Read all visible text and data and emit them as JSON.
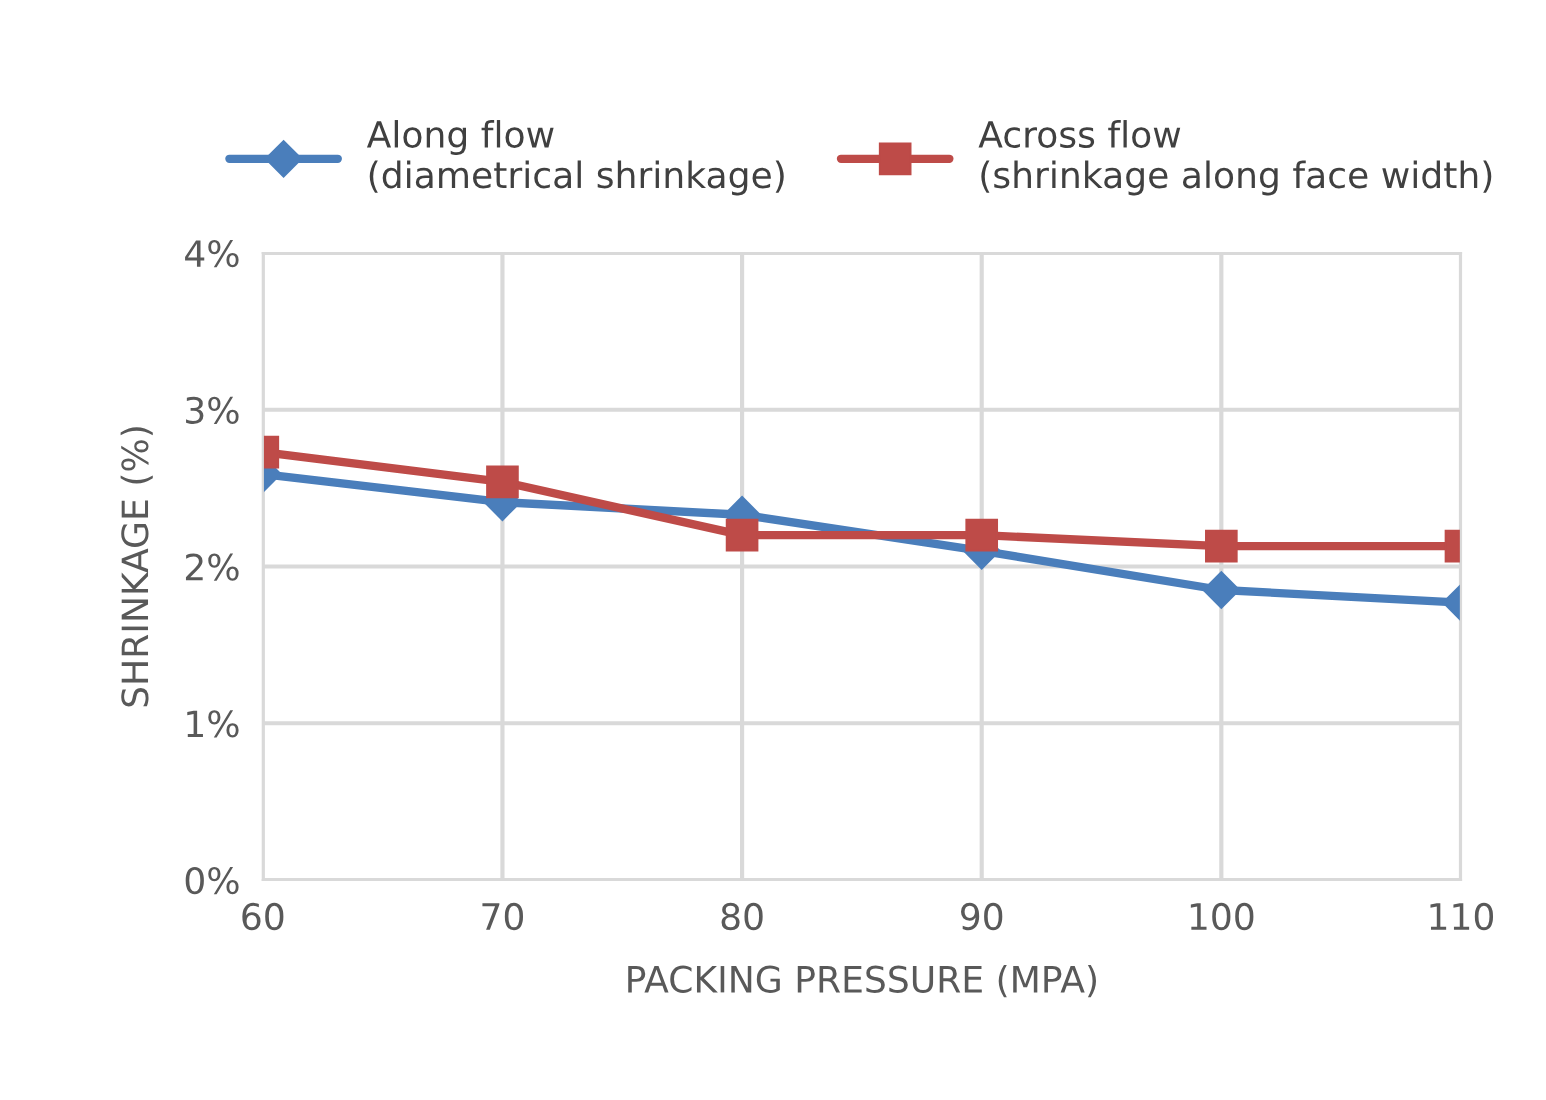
{
  "chart_data": {
    "type": "line",
    "xlabel": "PACKING PRESSURE (MPA)",
    "ylabel": "SHRINKAGE (%)",
    "x": [
      60,
      70,
      80,
      90,
      100,
      110
    ],
    "series": [
      {
        "name": "Along flow\n(diametrical shrinkage)",
        "color": "#4a7ebb",
        "marker": "diamond",
        "values": [
          2.59,
          2.41,
          2.33,
          2.1,
          1.85,
          1.77
        ]
      },
      {
        "name": "Across flow\n(shrinkage along face width)",
        "color": "#be4b48",
        "marker": "square",
        "values": [
          2.73,
          2.54,
          2.2,
          2.2,
          2.13,
          2.13
        ]
      }
    ],
    "xlim": [
      60,
      110
    ],
    "xticks": [
      60,
      70,
      80,
      90,
      100,
      110
    ],
    "ylim": [
      0,
      4
    ],
    "yticks": [
      {
        "value": 0,
        "label": "0%"
      },
      {
        "value": 1,
        "label": "1%"
      },
      {
        "value": 2,
        "label": "2%"
      },
      {
        "value": 3,
        "label": "3%"
      },
      {
        "value": 4,
        "label": "4%"
      }
    ],
    "grid": true,
    "legend": "top",
    "line_style": "solid"
  }
}
